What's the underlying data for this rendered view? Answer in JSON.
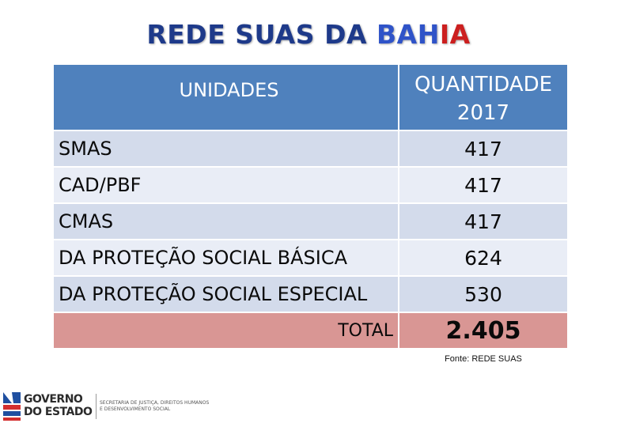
{
  "title": {
    "part1": "REDE SUAS DA ",
    "part2": "BAH",
    "part3": "IA"
  },
  "table": {
    "header": {
      "col1": "UNIDADES",
      "col2_line1": "QUANTIDADE",
      "col2_line2": "2017"
    },
    "rows": [
      {
        "label": "SMAS",
        "value": "417"
      },
      {
        "label": "CAD/PBF",
        "value": "417"
      },
      {
        "label": "CMAS",
        "value": "417"
      },
      {
        "label": "DA PROTEÇÃO SOCIAL BÁSICA",
        "value": "624"
      },
      {
        "label": "DA PROTEÇÃO SOCIAL ESPECIAL",
        "value": "530"
      }
    ],
    "total": {
      "label": "TOTAL",
      "value": "2.405"
    }
  },
  "source": "Fonte: REDE SUAS",
  "logo": {
    "line1": "GOVERNO",
    "line2": "DO ESTADO",
    "sub1": "SECRETARIA DE JUSTIÇA, DIREITOS HUMANOS",
    "sub2": "E DESENVOLVIMENTO SOCIAL"
  },
  "colors": {
    "header": "#4f81bd",
    "row_dark": "#d3dbeb",
    "row_light": "#e9edf6",
    "total": "#d99694",
    "title_dark": "#1e3a8a",
    "title_blue": "#2f53c8",
    "title_red": "#cc1f1f"
  }
}
